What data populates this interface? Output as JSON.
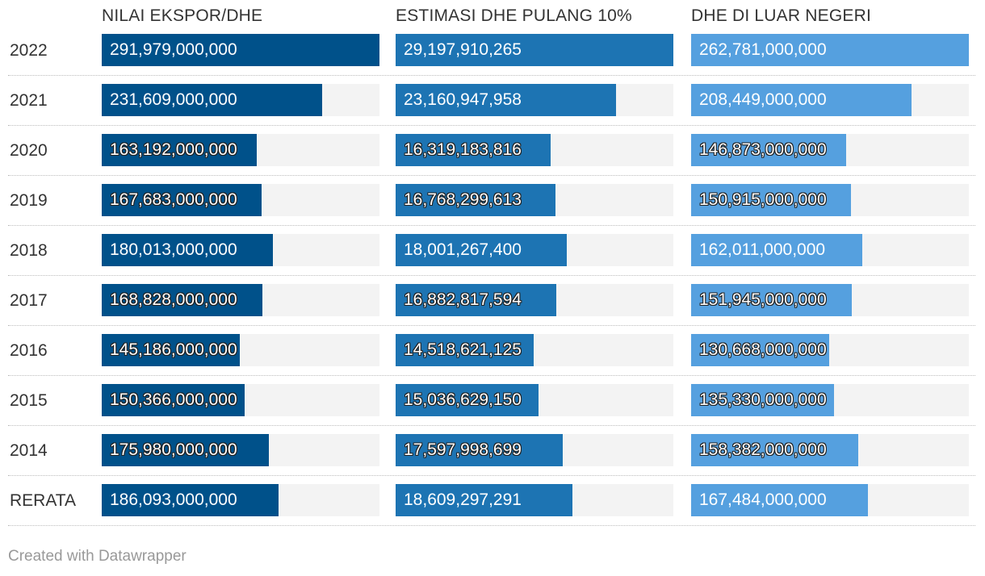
{
  "chart_data": {
    "type": "bar",
    "columns": [
      "NILAI EKSPOR/DHE",
      "ESTIMASI DHE PULANG 10%",
      "DHE DI LUAR NEGERI"
    ],
    "colors": [
      "#00518a",
      "#1d74b3",
      "#55a0df"
    ],
    "track_color": "#f3f3f3",
    "categories": [
      "2022",
      "2021",
      "2020",
      "2019",
      "2018",
      "2017",
      "2016",
      "2015",
      "2014",
      "RERATA"
    ],
    "series": [
      {
        "name": "NILAI EKSPOR/DHE",
        "values": [
          291979000000,
          231609000000,
          163192000000,
          167683000000,
          180013000000,
          168828000000,
          145186000000,
          150366000000,
          175980000000,
          186093000000
        ],
        "labels": [
          "291,979,000,000",
          "231,609,000,000",
          "163,192,000,000",
          "167,683,000,000",
          "180,013,000,000",
          "168,828,000,000",
          "145,186,000,000",
          "150,366,000,000",
          "175,980,000,000",
          "186,093,000,000"
        ],
        "max": 291979000000
      },
      {
        "name": "ESTIMASI DHE PULANG 10%",
        "values": [
          29197910265,
          23160947958,
          16319183816,
          16768299613,
          18001267400,
          16882817594,
          14518621125,
          15036629150,
          17597998699,
          18609297291
        ],
        "labels": [
          "29,197,910,265",
          "23,160,947,958",
          "16,319,183,816",
          "16,768,299,613",
          "18,001,267,400",
          "16,882,817,594",
          "14,518,621,125",
          "15,036,629,150",
          "17,597,998,699",
          "18,609,297,291"
        ],
        "max": 29197910265
      },
      {
        "name": "DHE DI LUAR NEGERI",
        "values": [
          262781000000,
          208449000000,
          146873000000,
          150915000000,
          162011000000,
          151945000000,
          130668000000,
          135330000000,
          158382000000,
          167484000000
        ],
        "labels": [
          "262,781,000,000",
          "208,449,000,000",
          "146,873,000,000",
          "150,915,000,000",
          "162,011,000,000",
          "151,945,000,000",
          "130,668,000,000",
          "135,330,000,000",
          "158,382,000,000",
          "167,484,000,000"
        ],
        "max": 262781000000
      }
    ]
  },
  "footer": "Created with Datawrapper"
}
